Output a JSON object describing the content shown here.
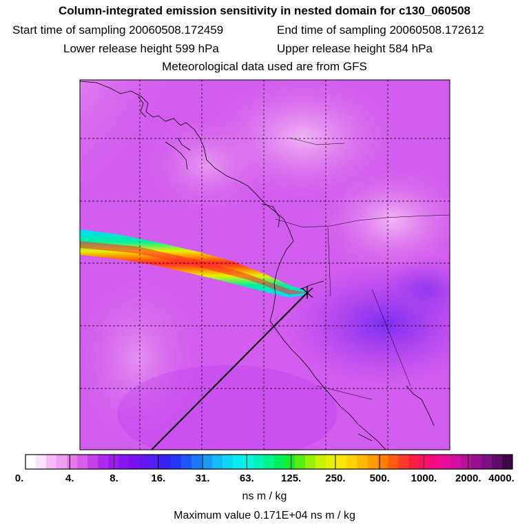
{
  "header": {
    "title": "Column-integrated emission sensitivity in nested domain for c130_060508",
    "start_label": "Start time of sampling 20060508.172459",
    "end_label": "End time of sampling 20060508.172612",
    "lower_label": "Lower release height  599 hPa",
    "upper_label": "Upper release height  584 hPa",
    "met_label": "Meteorological data used are from GFS"
  },
  "colorbar": {
    "labels": [
      "0.",
      "4.",
      "8.",
      "16.",
      "31.",
      "63.",
      "125.",
      "250.",
      "500.",
      "1000.",
      "2000.",
      "4000."
    ],
    "colors": [
      "#ffffff",
      "#fde2fd",
      "#f6b8f6",
      "#eea0ee",
      "#e27be8",
      "#d65de6",
      "#c641ea",
      "#b229ee",
      "#9f1aef",
      "#8a16ef",
      "#7a12ef",
      "#6418ef",
      "#4e1ef2",
      "#3322f2",
      "#2238f4",
      "#1c56f6",
      "#1a78f8",
      "#1a99f7",
      "#16b9f5",
      "#10d6f3",
      "#08ecf0",
      "#00f8e0",
      "#00f4b8",
      "#00f28a",
      "#00ef5a",
      "#16ee2a",
      "#5aee10",
      "#98ef08",
      "#c6f200",
      "#e8f200",
      "#f8e800",
      "#fdd300",
      "#ffb800",
      "#ff9c00",
      "#ff7f00",
      "#ff5c10",
      "#ff3a2a",
      "#ff1f45",
      "#ff0d66",
      "#f50a84",
      "#e80c98",
      "#d20f9e",
      "#b8109a",
      "#9a1190",
      "#7c1080",
      "#5e0c68",
      "#3e0846"
    ],
    "units": "ns m / kg",
    "max_value_label": "Maximum value  0.171E+04 ns m / kg"
  }
}
